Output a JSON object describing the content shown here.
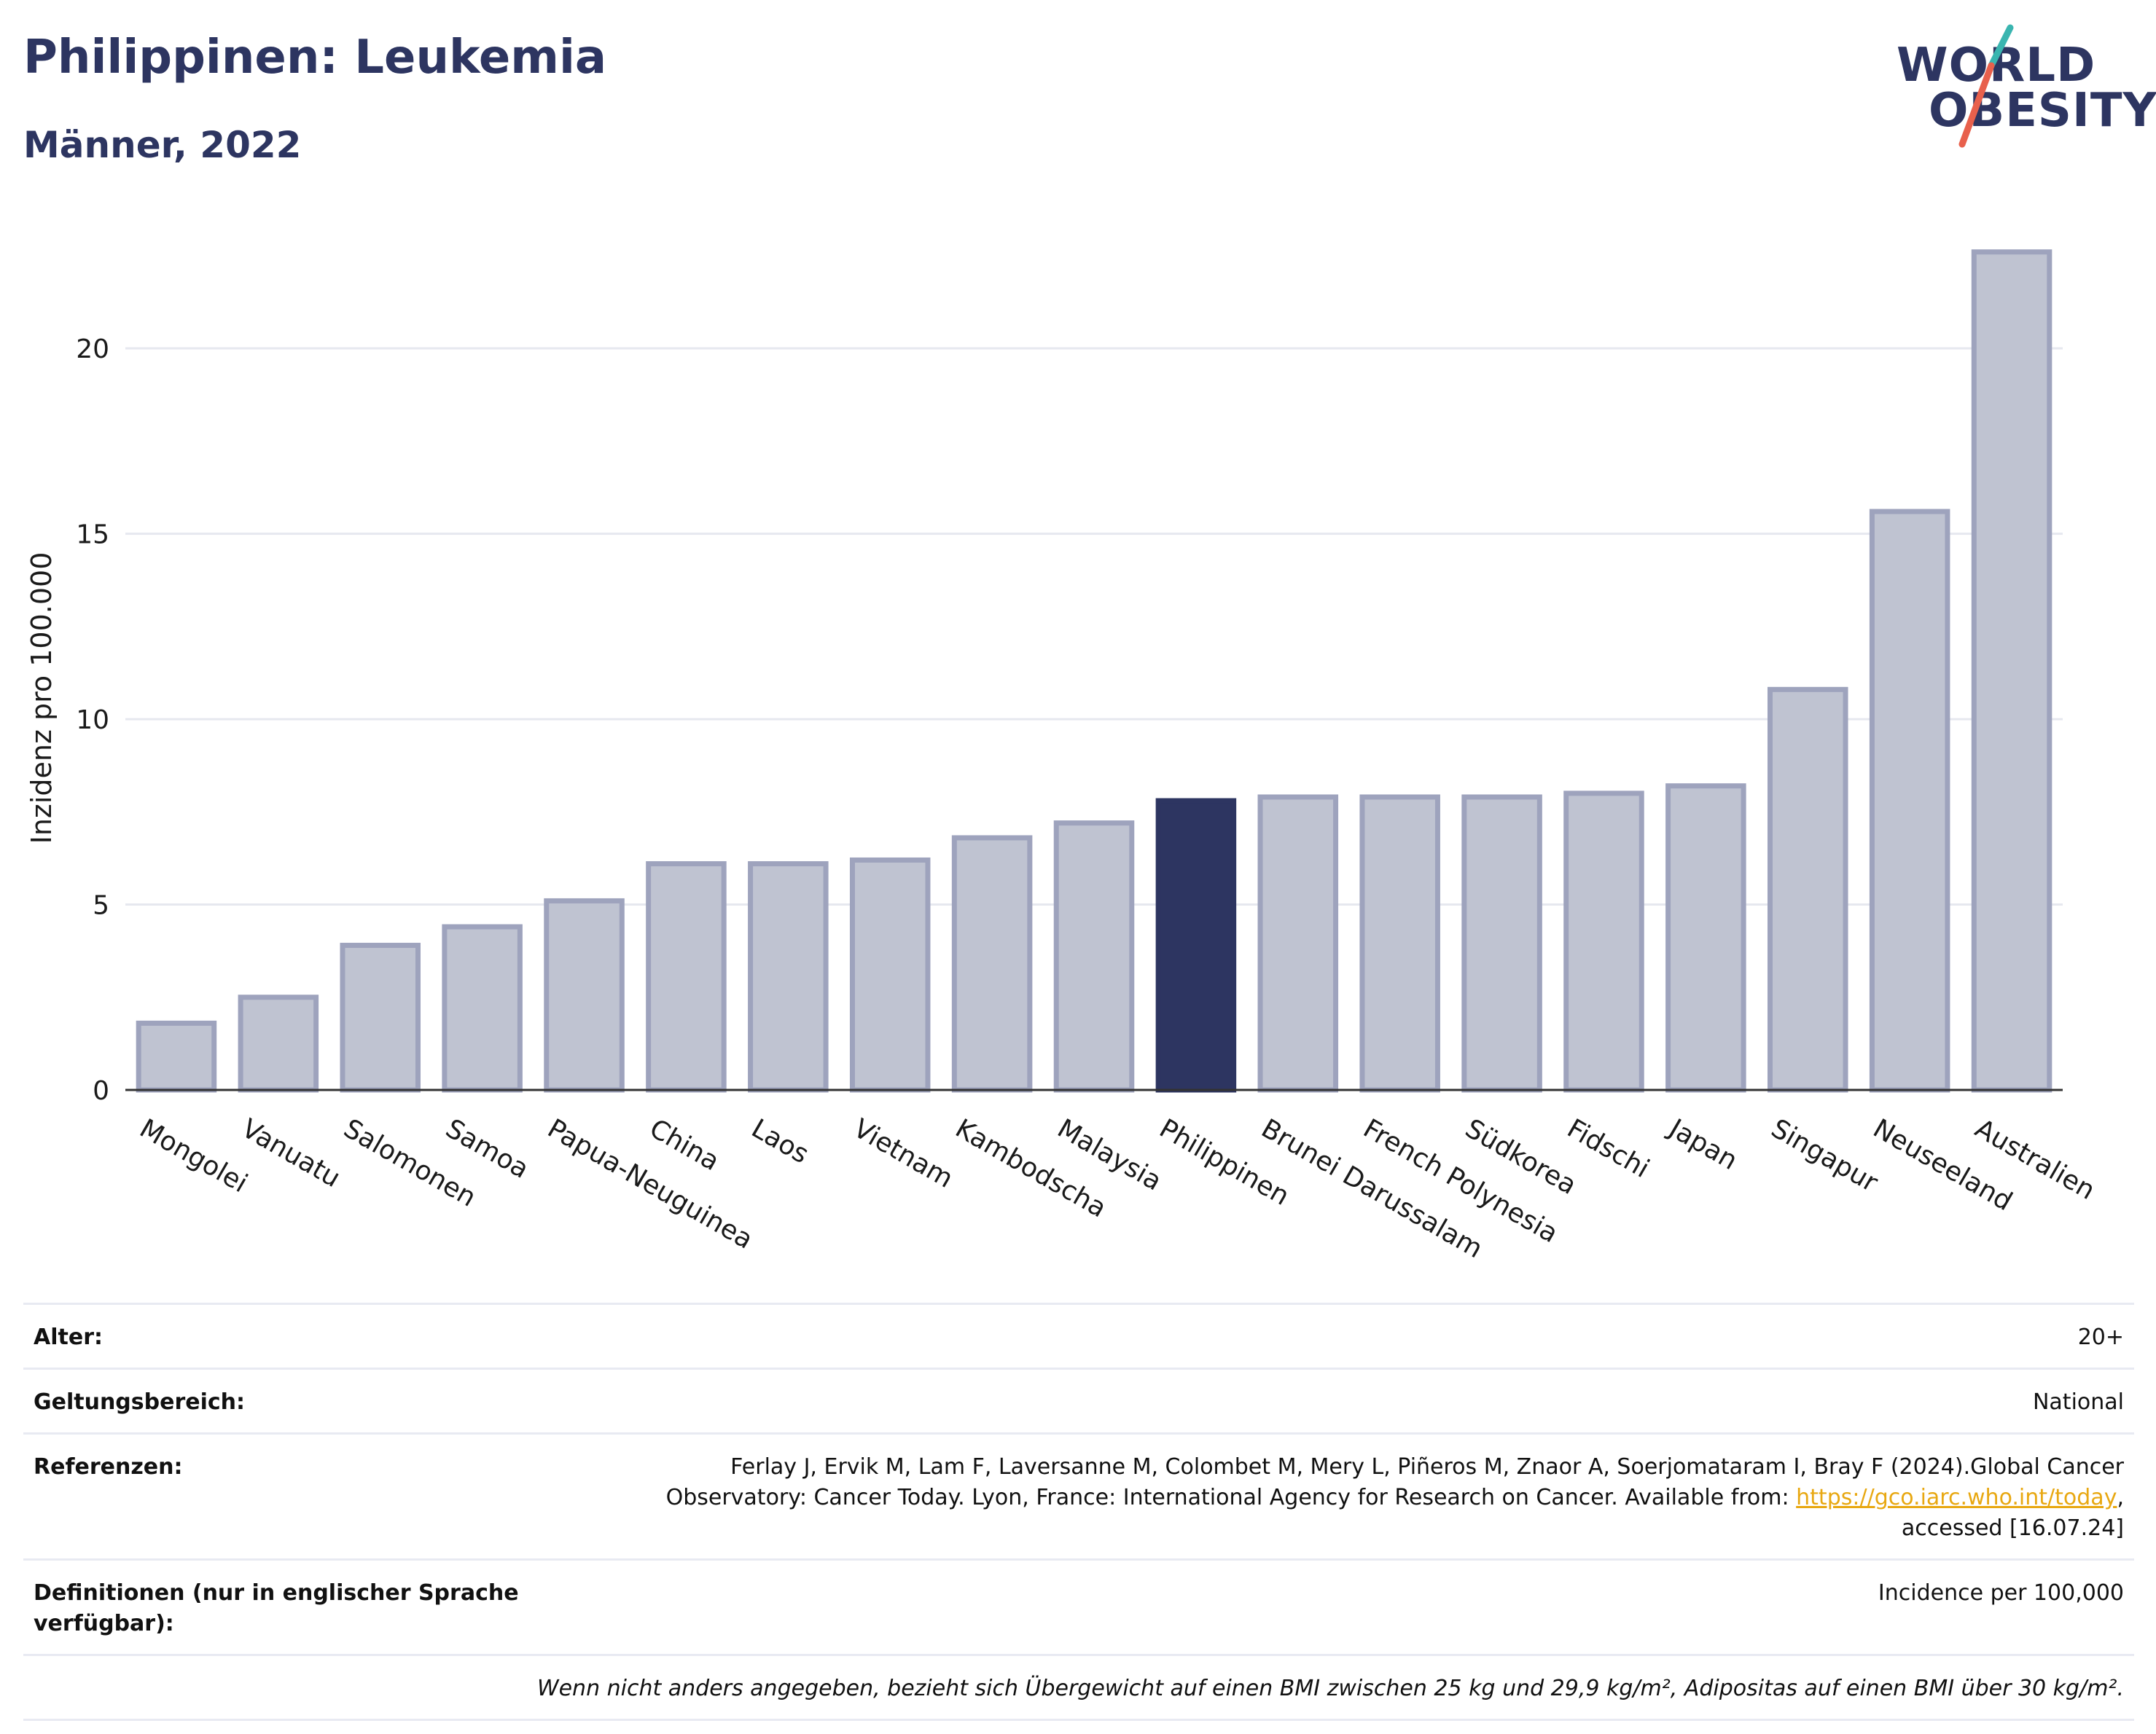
{
  "header": {
    "title": "Philippinen: Leukemia",
    "subtitle": "Männer, 2022"
  },
  "logo": {
    "line1": "WORLD",
    "line2": "OBESITY",
    "colors": {
      "text": "#2d3561",
      "slash_top": "#3ab5b0",
      "slash_bottom": "#e8604c"
    }
  },
  "chart_data": {
    "type": "bar",
    "title": "",
    "xlabel": "",
    "ylabel": "Inzidenz pro 100.000",
    "ylim": [
      0,
      23.5
    ],
    "yticks": [
      0,
      5,
      10,
      15,
      20
    ],
    "grid": true,
    "highlight": "Philippinen",
    "colors": {
      "bar": "#bfc3d1",
      "bar_outline": "#9ea3bd",
      "highlight": "#2d3561",
      "grid": "#e6e8ef"
    },
    "categories": [
      "Mongolei",
      "Vanuatu",
      "Salomonen",
      "Samoa",
      "Papua-Neuguinea",
      "China",
      "Laos",
      "Vietnam",
      "Kambodscha",
      "Malaysia",
      "Philippinen",
      "Brunei Darussalam",
      "French Polynesia",
      "Südkorea",
      "Fidschi",
      "Japan",
      "Singapur",
      "Neuseeland",
      "Australien"
    ],
    "values": [
      1.8,
      2.5,
      3.9,
      4.4,
      5.1,
      6.1,
      6.1,
      6.2,
      6.8,
      7.2,
      7.8,
      7.9,
      7.9,
      7.9,
      8.0,
      8.2,
      10.8,
      15.6,
      22.6
    ]
  },
  "info": {
    "rows": [
      {
        "key": "Alter:",
        "value": "20+"
      },
      {
        "key": "Geltungsbereich:",
        "value": "National"
      },
      {
        "key": "Referenzen:",
        "value_line1": "Ferlay J, Ervik M, Lam F, Laversanne M, Colombet M, Mery L, Piñeros M, Znaor A, Soerjomataram I, Bray F (2024).Global Cancer",
        "value_line2_pre": "Observatory: Cancer Today. Lyon, France: International Agency for Research on Cancer. Available from: ",
        "link": "https://gco.iarc.who.int/today",
        "value_line2_post": ",",
        "value_line3": "accessed [16.07.24]"
      },
      {
        "key": "Definitionen (nur in englischer Sprache verfügbar):",
        "value": "Incidence per 100,000"
      }
    ],
    "note": "Wenn nicht anders angegeben, bezieht sich Übergewicht auf einen BMI zwischen 25 kg und 29,9 kg/m², Adipositas auf einen BMI über 30 kg/m²."
  }
}
